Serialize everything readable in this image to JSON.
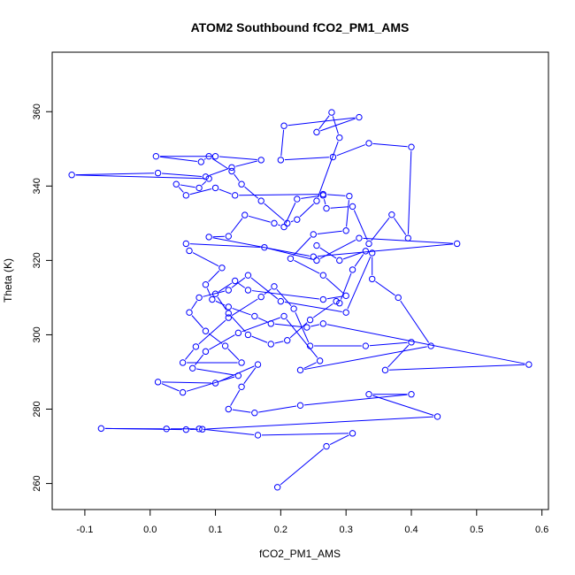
{
  "chart_data": {
    "type": "line",
    "title": "ATOM2 Southbound fCO2_PM1_AMS",
    "xlabel": "fCO2_PM1_AMS",
    "ylabel": "Theta (K)",
    "xlim": [
      -0.15,
      0.61
    ],
    "ylim": [
      253,
      376
    ],
    "x_ticks": [
      -0.1,
      0.0,
      0.1,
      0.2,
      0.3,
      0.4,
      0.5,
      0.6
    ],
    "x_tick_labels": [
      "-0.1",
      "0.0",
      "0.1",
      "0.2",
      "0.3",
      "0.4",
      "0.5",
      "0.6"
    ],
    "y_ticks": [
      260,
      280,
      300,
      320,
      340,
      360
    ],
    "y_tick_labels": [
      "260",
      "280",
      "300",
      "320",
      "340",
      "360"
    ],
    "grid": false,
    "marker": "open-circle",
    "series": [
      {
        "color": "#0000ff",
        "points": [
          [
            0.195,
            259
          ],
          [
            0.27,
            270
          ],
          [
            0.31,
            273.5
          ],
          [
            0.165,
            273
          ],
          [
            0.075,
            274.7
          ],
          [
            0.025,
            274.7
          ],
          [
            -0.075,
            274.8
          ],
          [
            0.055,
            274.5
          ],
          [
            0.08,
            274.6
          ],
          [
            0.44,
            278
          ],
          [
            0.335,
            284
          ],
          [
            0.4,
            284
          ],
          [
            0.23,
            281
          ],
          [
            0.16,
            279
          ],
          [
            0.12,
            280
          ],
          [
            0.14,
            286
          ],
          [
            0.165,
            292
          ],
          [
            0.1,
            287
          ],
          [
            0.012,
            287.3
          ],
          [
            0.05,
            284.5
          ],
          [
            0.135,
            289
          ],
          [
            0.065,
            291
          ],
          [
            0.085,
            295.5
          ],
          [
            0.135,
            300.5
          ],
          [
            0.205,
            305
          ],
          [
            0.26,
            293
          ],
          [
            0.23,
            290.5
          ],
          [
            0.43,
            297
          ],
          [
            0.38,
            310
          ],
          [
            0.34,
            315
          ],
          [
            0.34,
            322
          ],
          [
            0.3,
            306
          ],
          [
            0.2,
            309
          ],
          [
            0.15,
            316
          ],
          [
            0.12,
            312
          ],
          [
            0.075,
            310
          ],
          [
            0.06,
            306
          ],
          [
            0.085,
            301
          ],
          [
            0.115,
            297
          ],
          [
            0.14,
            292.5
          ],
          [
            0.05,
            292.5
          ],
          [
            0.07,
            296.8
          ],
          [
            0.12,
            304.6
          ],
          [
            0.17,
            310.2
          ],
          [
            0.19,
            313
          ],
          [
            0.22,
            307
          ],
          [
            0.245,
            297
          ],
          [
            0.33,
            297
          ],
          [
            0.4,
            298
          ],
          [
            0.36,
            290.5
          ],
          [
            0.58,
            292
          ],
          [
            0.265,
            303
          ],
          [
            0.24,
            302
          ],
          [
            0.185,
            303
          ],
          [
            0.16,
            305
          ],
          [
            0.12,
            307.5
          ],
          [
            0.095,
            309.5
          ],
          [
            0.085,
            313.5
          ],
          [
            0.11,
            318
          ],
          [
            0.06,
            322.6
          ],
          [
            0.055,
            324.5
          ],
          [
            0.175,
            323.5
          ],
          [
            0.255,
            320
          ],
          [
            0.32,
            326
          ],
          [
            0.47,
            324.5
          ],
          [
            0.25,
            321
          ],
          [
            0.09,
            326.3
          ],
          [
            0.12,
            326.5
          ],
          [
            0.145,
            332.2
          ],
          [
            0.19,
            330
          ],
          [
            0.205,
            329
          ],
          [
            0.225,
            336.5
          ],
          [
            0.265,
            337.5
          ],
          [
            0.27,
            334
          ],
          [
            0.31,
            334.5
          ],
          [
            0.335,
            324.5
          ],
          [
            0.37,
            332.3
          ],
          [
            0.395,
            326
          ],
          [
            0.4,
            350.5
          ],
          [
            0.335,
            351.5
          ],
          [
            0.28,
            347.8
          ],
          [
            0.2,
            347
          ],
          [
            0.205,
            356.2
          ],
          [
            0.32,
            358.5
          ],
          [
            0.255,
            354.5
          ],
          [
            0.278,
            359.8
          ],
          [
            0.29,
            353
          ],
          [
            0.255,
            336
          ],
          [
            0.225,
            331
          ],
          [
            0.21,
            330
          ],
          [
            0.17,
            336
          ],
          [
            0.14,
            340.5
          ],
          [
            0.125,
            344
          ],
          [
            0.09,
            348
          ],
          [
            0.078,
            346.5
          ],
          [
            0.009,
            348
          ],
          [
            0.1,
            348
          ],
          [
            0.17,
            347
          ],
          [
            0.125,
            345
          ],
          [
            0.085,
            342.5
          ],
          [
            0.012,
            343.5
          ],
          [
            -0.12,
            343
          ],
          [
            0.09,
            342
          ],
          [
            0.075,
            339.5
          ],
          [
            0.04,
            340.5
          ],
          [
            0.055,
            337.5
          ],
          [
            0.1,
            339.5
          ],
          [
            0.13,
            337.5
          ],
          [
            0.265,
            337.8
          ],
          [
            0.305,
            337.3
          ],
          [
            0.3,
            328
          ],
          [
            0.25,
            327
          ],
          [
            0.215,
            320.5
          ],
          [
            0.265,
            316
          ],
          [
            0.3,
            310.5
          ],
          [
            0.265,
            309.5
          ],
          [
            0.15,
            312
          ],
          [
            0.13,
            314.5
          ],
          [
            0.1,
            311
          ],
          [
            0.12,
            305.8
          ],
          [
            0.15,
            300
          ],
          [
            0.185,
            297.5
          ],
          [
            0.21,
            298.5
          ],
          [
            0.245,
            304
          ],
          [
            0.285,
            309
          ],
          [
            0.29,
            308.5
          ],
          [
            0.31,
            317.5
          ],
          [
            0.33,
            322.5
          ],
          [
            0.29,
            320
          ],
          [
            0.255,
            324
          ]
        ]
      }
    ]
  }
}
